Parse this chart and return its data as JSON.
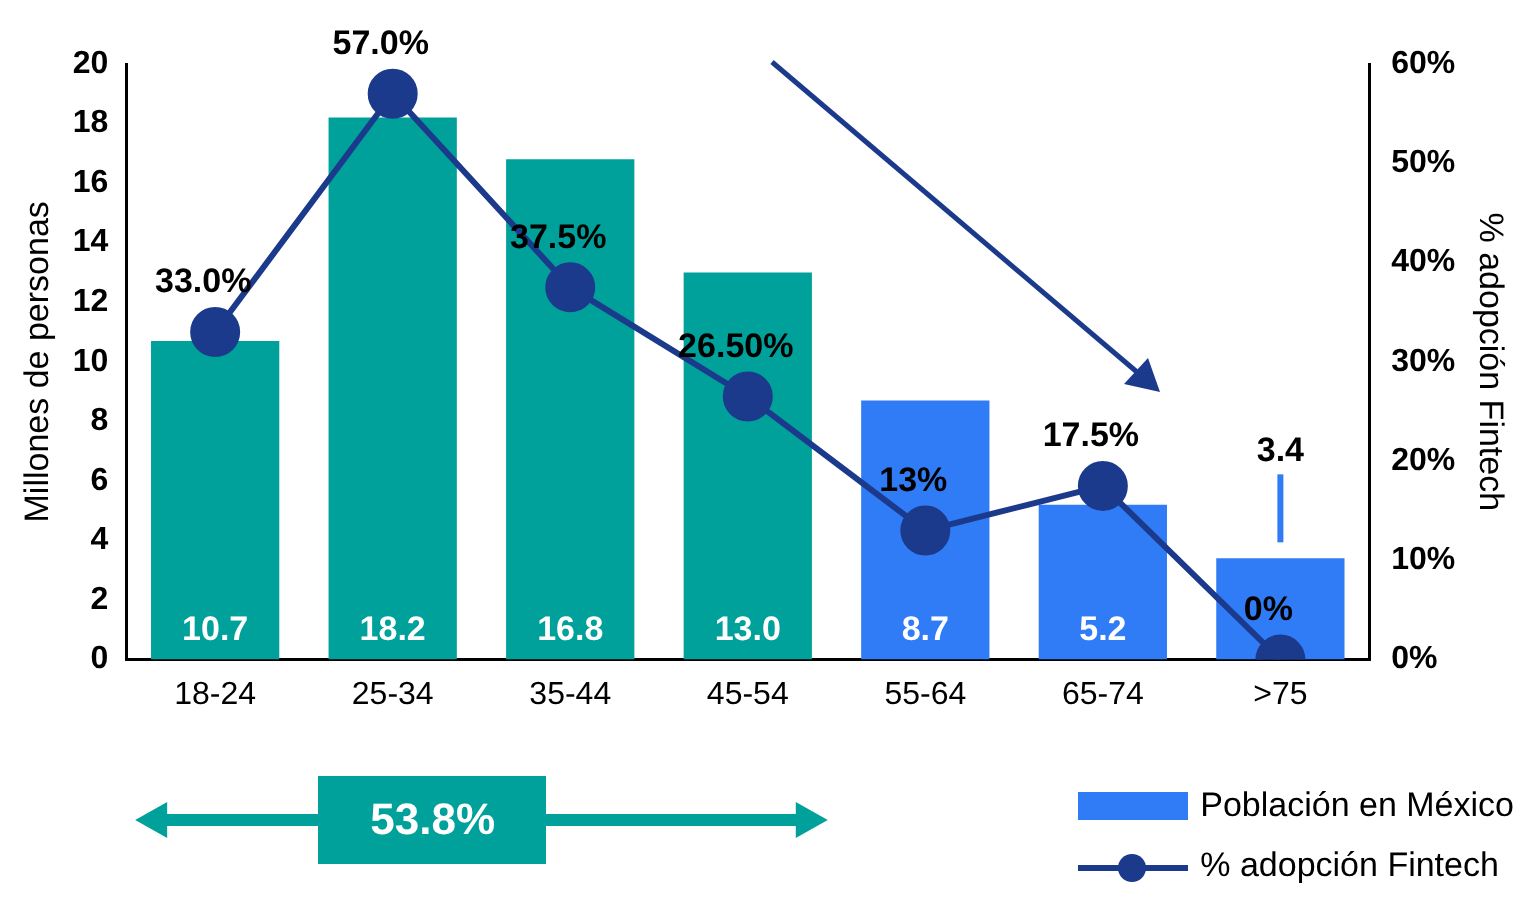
{
  "chart_data": {
    "type": "bar",
    "categories": [
      "18-24",
      "25-34",
      "35-44",
      "45-54",
      "55-64",
      "65-74",
      ">75"
    ],
    "ylabel": "Millones de personas",
    "y2label": "% adopción Fintech",
    "ylim": [
      0,
      20
    ],
    "yticks": [
      0,
      2,
      4,
      6,
      8,
      10,
      12,
      14,
      16,
      18,
      20
    ],
    "y2lim": [
      0,
      60
    ],
    "y2ticks": [
      {
        "value": 0,
        "label": "0%"
      },
      {
        "value": 10,
        "label": "10%"
      },
      {
        "value": 20,
        "label": "20%"
      },
      {
        "value": 30,
        "label": "30%"
      },
      {
        "value": 40,
        "label": "40%"
      },
      {
        "value": 50,
        "label": "50%"
      },
      {
        "value": 60,
        "label": "60%"
      }
    ],
    "series": [
      {
        "name": "Población en México",
        "colors": [
          "#00a19a",
          "#00a19a",
          "#00a19a",
          "#00a19a",
          "#2f7cf6",
          "#2f7cf6",
          "#2f7cf6"
        ],
        "color": "#2f7cf6",
        "values": [
          10.7,
          18.2,
          16.8,
          13.0,
          8.7,
          5.2,
          3.4
        ],
        "value_labels": [
          "10.7",
          "18.2",
          "16.8",
          "13.0",
          "8.7",
          "5.2",
          "3.4"
        ]
      },
      {
        "name": "% adopción Fintech",
        "type": "line",
        "axis": "y2",
        "color": "#1c3a8c",
        "marker": "circle",
        "values": [
          33.0,
          57.0,
          37.5,
          26.5,
          13,
          17.5,
          0
        ],
        "value_labels": [
          "33.0%",
          "57.0%",
          "37.5%",
          "26.50%",
          "13%",
          "17.5%",
          "0%"
        ]
      }
    ],
    "annotations": [
      "53.8%"
    ],
    "grid": false,
    "legend": "bottom right"
  }
}
